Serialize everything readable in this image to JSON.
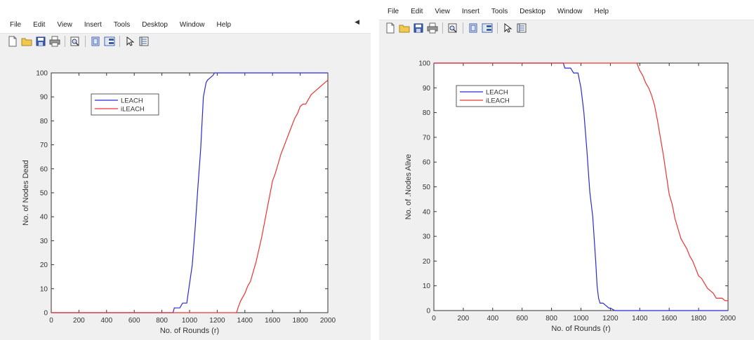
{
  "figures": [
    {
      "menu": [
        "File",
        "Edit",
        "View",
        "Insert",
        "Tools",
        "Desktop",
        "Window",
        "Help"
      ],
      "toolbar_icons": [
        "new-file-icon",
        "open-folder-icon",
        "save-icon",
        "print-icon",
        "separator",
        "print-preview-icon",
        "separator",
        "hide-plot-tools-icon",
        "show-plot-tools-icon",
        "separator",
        "edit-plot-arrow-icon",
        "open-property-inspector-icon"
      ]
    },
    {
      "menu": [
        "File",
        "Edit",
        "View",
        "Insert",
        "Tools",
        "Desktop",
        "Window",
        "Help"
      ],
      "toolbar_icons": [
        "new-file-icon",
        "open-folder-icon",
        "save-icon",
        "print-icon",
        "separator",
        "print-preview-icon",
        "separator",
        "hide-plot-tools-icon",
        "show-plot-tools-icon",
        "separator",
        "edit-plot-arrow-icon",
        "open-property-inspector-icon"
      ]
    }
  ],
  "colors": {
    "leach": "#2a2ad8",
    "ileach": "#ee3333",
    "canvas": "#f0f0f0",
    "axes_bg": "#ffffff"
  },
  "chart_data": [
    {
      "type": "line",
      "xlabel": "No. of Rounds (r)",
      "ylabel": "No. of  Nodes Dead",
      "xlim": [
        0,
        2000
      ],
      "ylim": [
        0,
        100
      ],
      "xticks": [
        0,
        200,
        400,
        600,
        800,
        1000,
        1200,
        1400,
        1600,
        1800,
        2000
      ],
      "yticks": [
        0,
        10,
        20,
        30,
        40,
        50,
        60,
        70,
        80,
        90,
        100
      ],
      "grid": false,
      "legend_position": "top-left",
      "series": [
        {
          "name": "LEACH",
          "color": "#2a2ad8",
          "x": [
            0,
            880,
            890,
            930,
            950,
            980,
            990,
            1020,
            1040,
            1060,
            1080,
            1100,
            1120,
            1130,
            1150,
            1170,
            1180,
            1200,
            1230,
            1250,
            2000
          ],
          "y": [
            0,
            0,
            2,
            2,
            4,
            4,
            8,
            20,
            35,
            52,
            68,
            90,
            96,
            97,
            98,
            99,
            100,
            100,
            100,
            100,
            100
          ]
        },
        {
          "name": "iLEACH",
          "color": "#ee3333",
          "x": [
            0,
            1340,
            1350,
            1370,
            1400,
            1420,
            1440,
            1460,
            1480,
            1500,
            1520,
            1540,
            1560,
            1580,
            1600,
            1620,
            1640,
            1660,
            1680,
            1700,
            1720,
            1740,
            1760,
            1780,
            1800,
            1820,
            1840,
            1860,
            1880,
            1900,
            1920,
            1940,
            1960,
            1980,
            2000
          ],
          "y": [
            0,
            0,
            2,
            5,
            8,
            11,
            13,
            17,
            21,
            26,
            31,
            37,
            43,
            49,
            55,
            58,
            62,
            66,
            69,
            72,
            75,
            78,
            81,
            83,
            86,
            87,
            87,
            89,
            91,
            92,
            93,
            94,
            95,
            96,
            97
          ]
        }
      ]
    },
    {
      "type": "line",
      "xlabel": "No. of Rounds (r)",
      "ylabel": "No. of .Nodes Alive",
      "xlim": [
        0,
        2000
      ],
      "ylim": [
        0,
        100
      ],
      "xticks": [
        0,
        200,
        400,
        600,
        800,
        1000,
        1200,
        1400,
        1600,
        1800,
        2000
      ],
      "yticks": [
        0,
        10,
        20,
        30,
        40,
        50,
        60,
        70,
        80,
        90,
        100
      ],
      "grid": false,
      "legend_position": "top-left",
      "series": [
        {
          "name": "LEACH",
          "color": "#2a2ad8",
          "x": [
            0,
            880,
            890,
            930,
            950,
            980,
            990,
            1000,
            1020,
            1040,
            1060,
            1080,
            1100,
            1110,
            1120,
            1130,
            1150,
            1170,
            1190,
            1200,
            1230,
            1250,
            2000
          ],
          "y": [
            100,
            100,
            98,
            98,
            96,
            96,
            93,
            90,
            80,
            65,
            48,
            38,
            20,
            10,
            5,
            3,
            3,
            2,
            1,
            1,
            0,
            0,
            0
          ]
        },
        {
          "name": "iLEACH",
          "color": "#ee3333",
          "x": [
            0,
            1380,
            1400,
            1420,
            1440,
            1460,
            1480,
            1500,
            1520,
            1540,
            1560,
            1580,
            1600,
            1620,
            1640,
            1660,
            1680,
            1700,
            1720,
            1740,
            1760,
            1780,
            1800,
            1820,
            1840,
            1860,
            1880,
            1900,
            1920,
            1940,
            1960,
            1980,
            2000
          ],
          "y": [
            100,
            100,
            97,
            95,
            92,
            90,
            87,
            83,
            77,
            70,
            63,
            55,
            47,
            43,
            37,
            33,
            29,
            27,
            25,
            22,
            20,
            17,
            14,
            13,
            11,
            9,
            8,
            7,
            5,
            5,
            5,
            4,
            4
          ]
        }
      ]
    }
  ]
}
